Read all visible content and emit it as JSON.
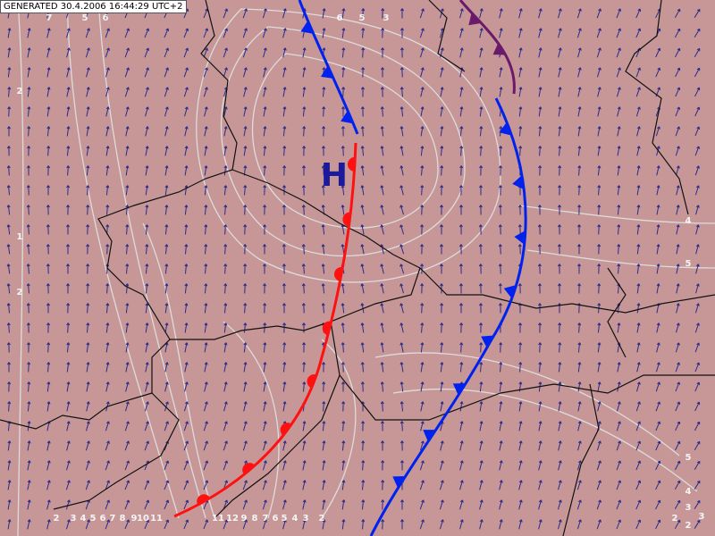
{
  "header": {
    "generated": "GENERATED 30.4.2006 16:44:29 UTC+2"
  },
  "map": {
    "pressure_center": "H",
    "contour_labels": [
      "7",
      "5",
      "6",
      "6",
      "5",
      "3",
      "2",
      "1",
      "2",
      "4",
      "5",
      "5",
      "4",
      "3",
      "2",
      "3",
      "2",
      "2",
      "3",
      "4",
      "5",
      "6",
      "7",
      "8",
      "9",
      "10",
      "11",
      "11",
      "12",
      "9",
      "8",
      "7",
      "6",
      "5",
      "4",
      "3",
      "2"
    ]
  }
}
